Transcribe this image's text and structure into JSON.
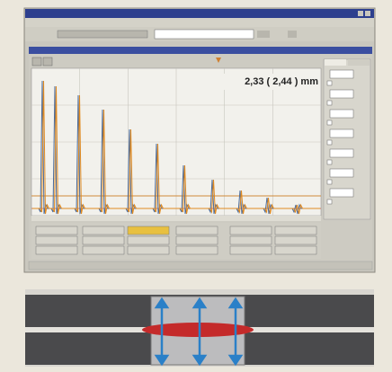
{
  "reading": "2,33 ( 2,44 ) mm"
}
